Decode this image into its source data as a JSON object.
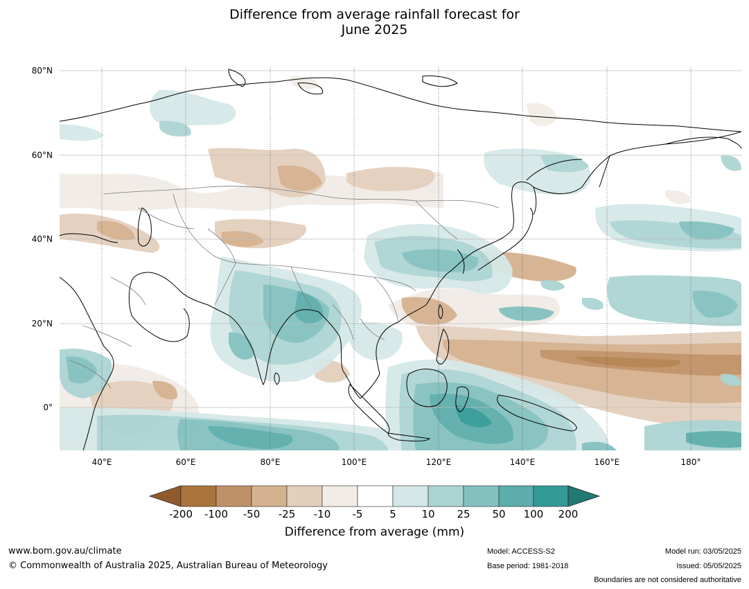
{
  "title": {
    "line1": "Difference from average rainfall forecast for",
    "line2": "June 2025"
  },
  "map": {
    "lat_labels": [
      "80°N",
      "60°N",
      "40°N",
      "20°N",
      "0°"
    ],
    "lon_labels": [
      "40°E",
      "60°E",
      "80°E",
      "100°E",
      "120°E",
      "140°E",
      "160°E",
      "180°"
    ],
    "colors": {
      "dry_200": "#8f5a2c",
      "dry_100": "#ab743c",
      "dry_50": "#c09166",
      "dry_25": "#d4b18f",
      "dry_10": "#e4cfbd",
      "dry_5": "#f1ece6",
      "neutral": "#ffffff",
      "wet_5": "#d5e8e7",
      "wet_10": "#acd4d3",
      "wet_25": "#83c1bf",
      "wet_50": "#5cadab",
      "wet_100": "#339a96",
      "wet_200": "#227873"
    }
  },
  "colorbar": {
    "ticks": [
      "-200",
      "-100",
      "-50",
      "-25",
      "-10",
      "-5",
      "5",
      "10",
      "25",
      "50",
      "100",
      "200"
    ],
    "label": "Difference from average (mm)"
  },
  "footer": {
    "website": "www.bom.gov.au/climate",
    "copyright": "© Commonwealth of Australia 2025, Australian Bureau of Meteorology",
    "model": "Model: ACCESS-S2",
    "base_period": "Base period: 1981-2018",
    "model_run": "Model run: 03/05/2025",
    "issued": "Issued: 05/05/2025",
    "disclaimer": "Boundaries are not considered authoritative"
  }
}
